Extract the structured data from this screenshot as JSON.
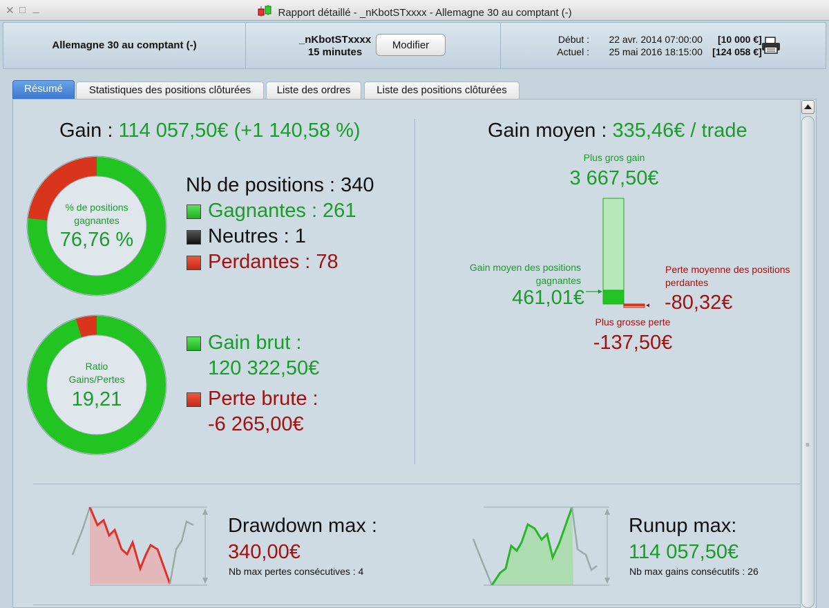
{
  "window": {
    "title": "Rapport détaillé - _nKbotSTxxxx - Allemagne 30 au comptant (-)"
  },
  "header": {
    "instrument": "Allemagne 30 au comptant (-)",
    "system_name": "_nKbotSTxxxx",
    "timeframe": "15 minutes",
    "modify_label": "Modifier",
    "start_label": "Début :",
    "start_value": "22 avr. 2014 07:00:00",
    "start_capital": "[10 000 €]",
    "current_label": "Actuel :",
    "current_value": "25 mai 2016 18:15:00",
    "current_capital": "[124 058 €]"
  },
  "tabs": [
    {
      "label": "Résumé",
      "active": true
    },
    {
      "label": "Statistiques des positions clôturées",
      "active": false
    },
    {
      "label": "Liste des ordres",
      "active": false
    },
    {
      "label": "Liste des positions clôturées",
      "active": false
    }
  ],
  "summary": {
    "gain_label": "Gain :",
    "gain_value": "114 057,50€ (+1 140,58 %)",
    "donut_winrate": {
      "label_line1": "% de positions",
      "label_line2": "gagnantes",
      "value": "76,76 %",
      "fraction": 0.7676
    },
    "donut_ratio": {
      "label_line1": "Ratio",
      "label_line2": "Gains/Pertes",
      "value": "19,21",
      "fraction": 0.9505
    },
    "positions_label": "Nb de positions : 340",
    "winning_label": "Gagnantes : 261",
    "neutral_label": "Neutres : 1",
    "losing_label": "Perdantes : 78",
    "gross_gain_label": "Gain brut :",
    "gross_gain_value": "120 322,50€",
    "gross_loss_label": "Perte brute :",
    "gross_loss_value": "-6 265,00€"
  },
  "average": {
    "title_label": "Gain moyen :",
    "title_value": "335,46€ / trade",
    "biggest_gain_label": "Plus gros gain",
    "biggest_gain_value": "3 667,50€",
    "avg_win_label_line1": "Gain moyen des positions",
    "avg_win_label_line2": "gagnantes",
    "avg_win_value": "461,01€",
    "avg_loss_label_line1": "Perte moyenne des positions",
    "avg_loss_label_line2": "perdantes",
    "avg_loss_value": "-80,32€",
    "biggest_loss_label": "Plus grosse perte",
    "biggest_loss_value": "-137,50€"
  },
  "drawdown": {
    "title": "Drawdown max :",
    "value": "340,00€",
    "sub": "Nb max pertes consécutives : 4"
  },
  "runup": {
    "title": "Runup max:",
    "value": "114 057,50€",
    "sub": "Nb max gains consécutifs : 26"
  },
  "colors": {
    "win": "#22c422",
    "loss": "#d9341c",
    "neutral": "#222222",
    "text_green": "#1a9c2a",
    "text_red": "#a41010",
    "tab_active": "#3b78cf"
  }
}
